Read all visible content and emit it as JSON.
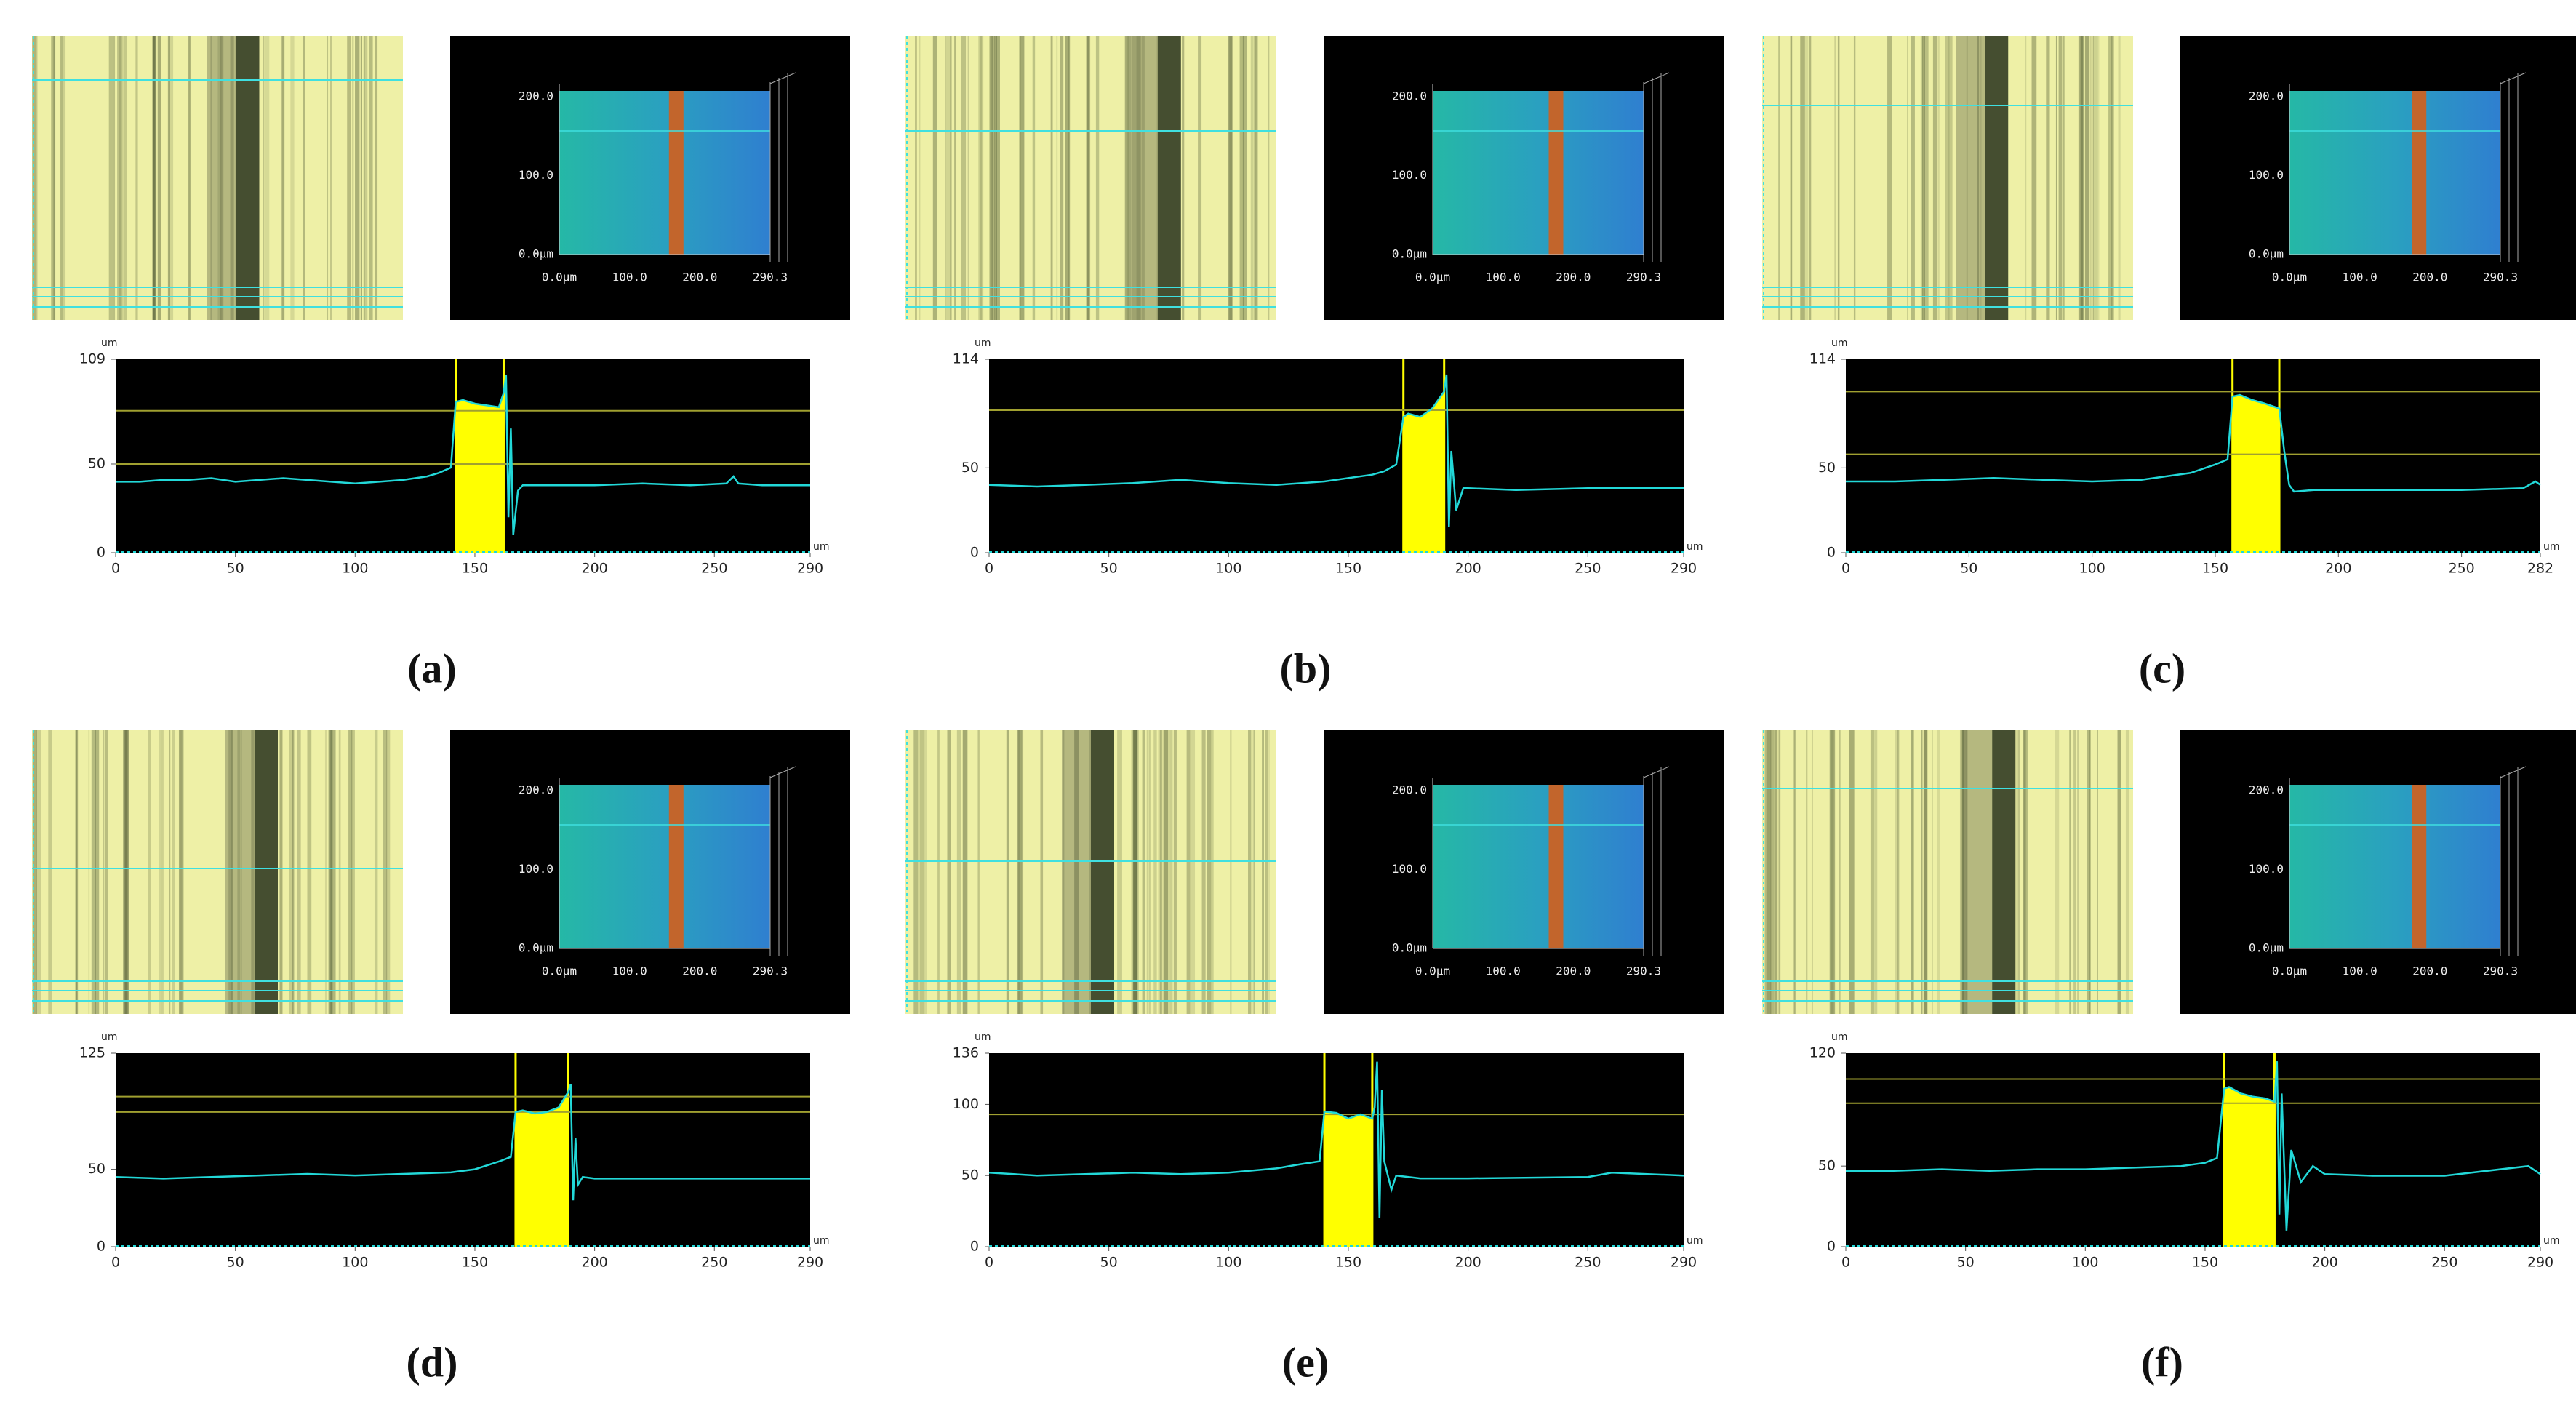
{
  "chart_data": [
    {
      "type": "line",
      "caption": "(a)",
      "ylabel": "um",
      "xlabel": "um",
      "color": "#22d8d8",
      "highlight_color": "#ffff00",
      "ref_color": "#a0a030",
      "render_y_labels": [
        "200.0",
        "100.0",
        "0.0µm"
      ],
      "render_x_labels": [
        "0.0µm",
        "100.0",
        "200.0",
        "290.3"
      ],
      "xlim": [
        0,
        290
      ],
      "ylim": [
        0,
        109
      ],
      "xticks": [
        0,
        50,
        100,
        150,
        200,
        250,
        290
      ],
      "yticks": [
        0,
        50,
        109
      ],
      "highlight": [
        142,
        162
      ],
      "ref_lines": [
        80,
        50
      ],
      "x": [
        0,
        10,
        20,
        30,
        40,
        50,
        60,
        70,
        80,
        90,
        100,
        110,
        120,
        130,
        135,
        140,
        142,
        145,
        150,
        155,
        160,
        162,
        163,
        164,
        165,
        166,
        168,
        170,
        180,
        200,
        220,
        240,
        255,
        258,
        260,
        270,
        280,
        290
      ],
      "values": [
        40,
        40,
        41,
        41,
        42,
        40,
        41,
        42,
        41,
        40,
        39,
        40,
        41,
        43,
        45,
        48,
        85,
        86,
        84,
        83,
        82,
        90,
        100,
        20,
        70,
        10,
        35,
        38,
        38,
        38,
        39,
        38,
        39,
        43,
        39,
        38,
        38,
        38
      ]
    },
    {
      "type": "line",
      "caption": "(b)",
      "ylabel": "um",
      "xlabel": "um",
      "color": "#22d8d8",
      "highlight_color": "#ffff00",
      "ref_color": "#a0a030",
      "render_y_labels": [
        "200.0",
        "100.0",
        "0.0µm"
      ],
      "render_x_labels": [
        "0.0µm",
        "100.0",
        "200.0",
        "290.3"
      ],
      "xlim": [
        0,
        290
      ],
      "ylim": [
        0,
        114
      ],
      "xticks": [
        0,
        50,
        100,
        150,
        200,
        250,
        290
      ],
      "yticks": [
        0,
        50,
        114
      ],
      "highlight": [
        173,
        190
      ],
      "ref_lines": [
        84
      ],
      "x": [
        0,
        20,
        40,
        60,
        80,
        100,
        120,
        140,
        160,
        165,
        170,
        173,
        175,
        180,
        185,
        190,
        191,
        192,
        193,
        195,
        198,
        200,
        220,
        250,
        290
      ],
      "values": [
        40,
        39,
        40,
        41,
        43,
        41,
        40,
        42,
        46,
        48,
        52,
        80,
        82,
        80,
        85,
        95,
        105,
        15,
        60,
        25,
        38,
        38,
        37,
        38,
        38
      ]
    },
    {
      "type": "line",
      "caption": "(c)",
      "ylabel": "um",
      "xlabel": "um",
      "color": "#22d8d8",
      "highlight_color": "#ffff00",
      "ref_color": "#a0a030",
      "render_y_labels": [
        "200.0",
        "100.0",
        "0.0µm"
      ],
      "render_x_labels": [
        "0.0µm",
        "100.0",
        "200.0",
        "290.3"
      ],
      "xlim": [
        0,
        282
      ],
      "ylim": [
        0,
        114
      ],
      "xticks": [
        0,
        50,
        100,
        150,
        200,
        250,
        282
      ],
      "yticks": [
        0,
        50,
        114
      ],
      "highlight": [
        157,
        176
      ],
      "ref_lines": [
        95,
        58
      ],
      "x": [
        0,
        20,
        40,
        60,
        80,
        100,
        120,
        140,
        150,
        155,
        157,
        160,
        165,
        170,
        176,
        178,
        180,
        182,
        190,
        220,
        250,
        275,
        280,
        282
      ],
      "values": [
        42,
        42,
        43,
        44,
        43,
        42,
        43,
        47,
        52,
        55,
        92,
        93,
        90,
        88,
        85,
        60,
        40,
        36,
        37,
        37,
        37,
        38,
        42,
        40
      ]
    },
    {
      "type": "line",
      "caption": "(d)",
      "ylabel": "um",
      "xlabel": "um",
      "color": "#22d8d8",
      "highlight_color": "#ffff00",
      "ref_color": "#a0a030",
      "render_y_labels": [
        "200.0",
        "100.0",
        "0.0µm"
      ],
      "render_x_labels": [
        "0.0µm",
        "100.0",
        "200.0",
        "290.3"
      ],
      "xlim": [
        0,
        290
      ],
      "ylim": [
        0,
        125
      ],
      "xticks": [
        0,
        50,
        100,
        150,
        200,
        250,
        290
      ],
      "yticks": [
        0,
        50,
        125
      ],
      "highlight": [
        167,
        189
      ],
      "ref_lines": [
        97,
        87
      ],
      "x": [
        0,
        20,
        40,
        60,
        80,
        100,
        120,
        140,
        150,
        160,
        165,
        167,
        170,
        175,
        180,
        185,
        189,
        190,
        191,
        192,
        193,
        195,
        200,
        220,
        250,
        290
      ],
      "values": [
        45,
        44,
        45,
        46,
        47,
        46,
        47,
        48,
        50,
        55,
        58,
        87,
        88,
        86,
        87,
        90,
        100,
        105,
        30,
        70,
        40,
        45,
        44,
        44,
        44,
        44
      ]
    },
    {
      "type": "line",
      "caption": "(e)",
      "ylabel": "um",
      "xlabel": "um",
      "color": "#22d8d8",
      "highlight_color": "#ffff00",
      "ref_color": "#a0a030",
      "render_y_labels": [
        "200.0",
        "100.0",
        "0.0µm"
      ],
      "render_x_labels": [
        "0.0µm",
        "100.0",
        "200.0",
        "290.3"
      ],
      "xlim": [
        0,
        290
      ],
      "ylim": [
        0,
        136
      ],
      "xticks": [
        0,
        50,
        100,
        150,
        200,
        250,
        290
      ],
      "yticks": [
        0,
        50,
        100,
        136
      ],
      "highlight": [
        140,
        160
      ],
      "ref_lines": [
        93
      ],
      "x": [
        0,
        20,
        40,
        60,
        80,
        100,
        120,
        130,
        138,
        140,
        145,
        150,
        155,
        160,
        161,
        162,
        163,
        164,
        165,
        168,
        170,
        180,
        200,
        250,
        260,
        290
      ],
      "values": [
        52,
        50,
        51,
        52,
        51,
        52,
        55,
        58,
        60,
        95,
        94,
        90,
        93,
        90,
        98,
        130,
        20,
        110,
        60,
        40,
        50,
        48,
        48,
        49,
        52,
        50
      ]
    },
    {
      "type": "line",
      "caption": "(f)",
      "ylabel": "um",
      "xlabel": "um",
      "color": "#22d8d8",
      "highlight_color": "#ffff00",
      "ref_color": "#a0a030",
      "render_y_labels": [
        "200.0",
        "100.0",
        "0.0µm"
      ],
      "render_x_labels": [
        "0.0µm",
        "100.0",
        "200.0",
        "290.3"
      ],
      "xlim": [
        0,
        290
      ],
      "ylim": [
        0,
        120
      ],
      "xticks": [
        0,
        50,
        100,
        150,
        200,
        250,
        290
      ],
      "yticks": [
        0,
        50,
        120
      ],
      "highlight": [
        158,
        179
      ],
      "ref_lines": [
        104,
        89
      ],
      "x": [
        0,
        20,
        40,
        60,
        80,
        100,
        120,
        140,
        150,
        155,
        158,
        160,
        165,
        170,
        175,
        179,
        180,
        181,
        182,
        184,
        186,
        190,
        195,
        200,
        220,
        250,
        285,
        290
      ],
      "values": [
        47,
        47,
        48,
        47,
        48,
        48,
        49,
        50,
        52,
        55,
        98,
        99,
        95,
        93,
        92,
        90,
        115,
        20,
        95,
        10,
        60,
        40,
        50,
        45,
        44,
        44,
        50,
        45
      ]
    }
  ]
}
